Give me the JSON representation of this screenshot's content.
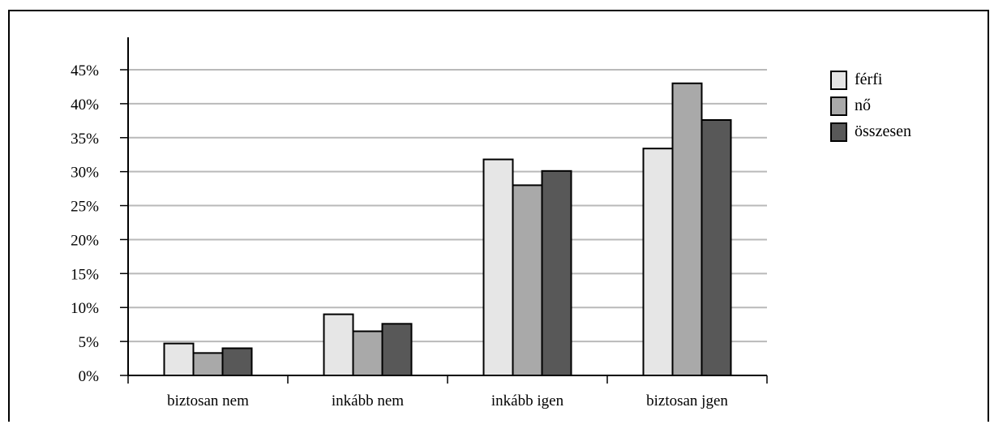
{
  "chart_data": {
    "type": "bar",
    "categories": [
      "biztosan nem",
      "inkább nem",
      "inkább igen",
      "biztosan jgen"
    ],
    "series": [
      {
        "name": "férfi",
        "color": "#e6e6e6",
        "values": [
          4.7,
          9.0,
          31.8,
          33.4
        ]
      },
      {
        "name": "nő",
        "color": "#a9a9a9",
        "values": [
          3.3,
          6.5,
          28.0,
          43.0
        ]
      },
      {
        "name": "összesen",
        "color": "#585858",
        "values": [
          4.0,
          7.6,
          30.1,
          37.6
        ]
      }
    ],
    "ylim": [
      0,
      45
    ],
    "y_ticks": [
      0,
      5,
      10,
      15,
      20,
      25,
      30,
      35,
      40,
      45
    ],
    "y_tick_labels": [
      "0%",
      "5%",
      "10%",
      "15%",
      "20%",
      "25%",
      "30%",
      "35%",
      "40%",
      "45%"
    ],
    "grid": true,
    "legend_position": "top-right"
  }
}
